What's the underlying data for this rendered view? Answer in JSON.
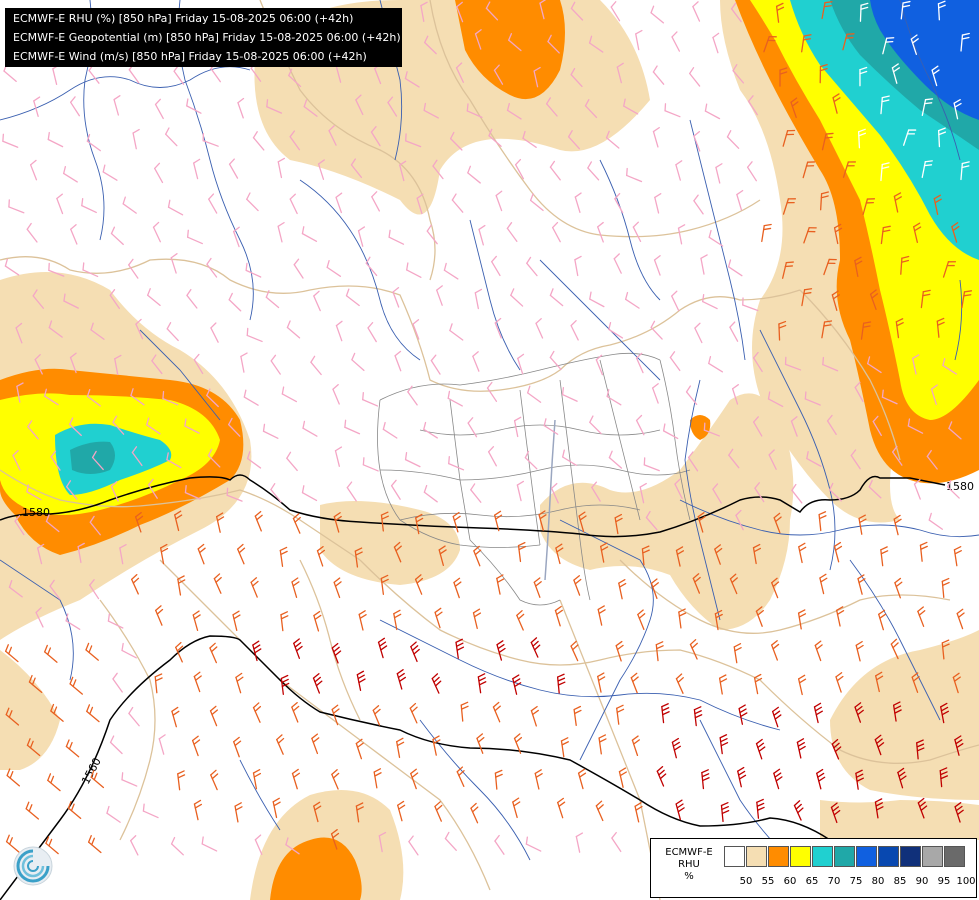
{
  "title_lines": [
    "ECMWF-E RHU (%) [850 hPa] Friday 15-08-2025 06:00 (+42h)",
    "ECMWF-E Geopotential (m) [850 hPa] Friday 15-08-2025 06:00 (+42h)",
    "ECMWF-E Wind (m/s) [850 hPa] Friday 15-08-2025 06:00 (+42h)"
  ],
  "contour_labels": {
    "upper": "1580",
    "upper_left": "1580",
    "lower": "1560"
  },
  "legend": {
    "title": [
      "ECMWF-E",
      "RHU",
      "%"
    ],
    "colors": [
      "#ffffff",
      "#f5deb3",
      "#ff8c00",
      "#ffff00",
      "#20d0d0",
      "#20a8a8",
      "#1060e0",
      "#0848b0",
      "#10307a",
      "#a8a8a8",
      "#6a6a6a"
    ],
    "ticks": [
      "50",
      "55",
      "60",
      "65",
      "70",
      "75",
      "80",
      "85",
      "90",
      "95",
      "100"
    ]
  },
  "colors": {
    "river": "#3a5fb0",
    "border": "#dcc29a",
    "inner_border": "#888888",
    "wind_light": "#f4a6c6",
    "wind_medium": "#e86020",
    "wind_strong": "#c00000"
  },
  "logo_icon": "ecmwf-swirl-icon"
}
